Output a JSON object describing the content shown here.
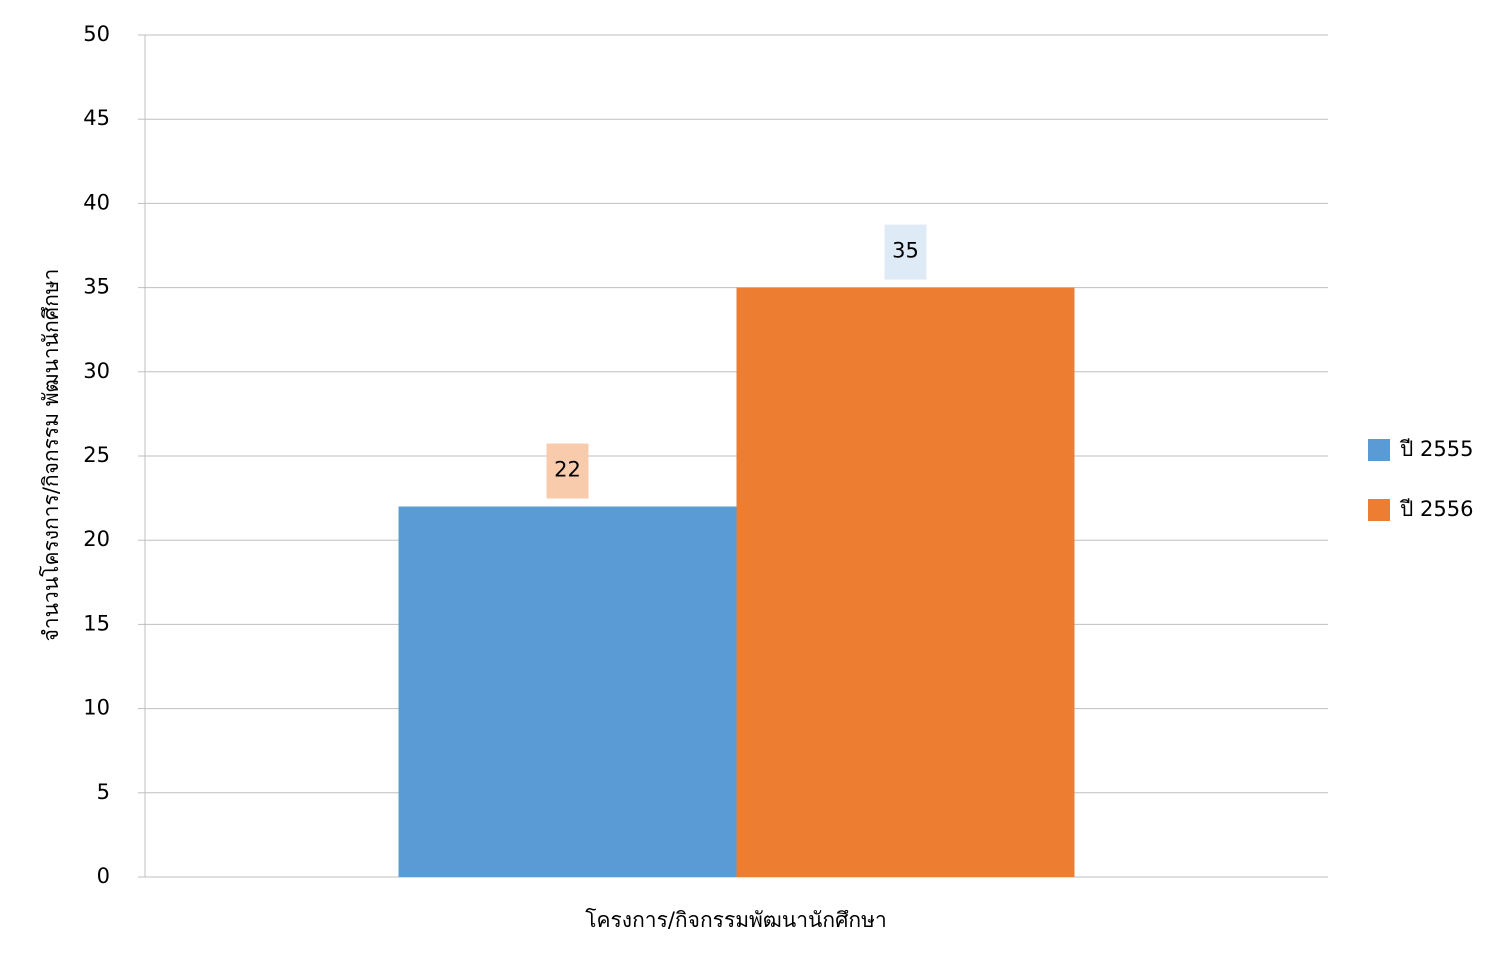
{
  "chart_data": {
    "type": "bar",
    "x_label": "โครงการ/กิจกรรมพัฒนานักศึกษา",
    "y_label": "จำนวนโครงการ/กิจกรรม พัฒนานักศึกษา",
    "categories": [
      null
    ],
    "series": [
      {
        "name": "ปี 2555",
        "color": "#5b9bd5",
        "label_background": "#f8cbad",
        "values": [
          22
        ]
      },
      {
        "name": "ปี 2556",
        "color": "#ed7d31",
        "label_background": "#deebf7",
        "values": [
          35
        ]
      }
    ],
    "ylim": [
      0,
      50
    ],
    "yticks": [
      0,
      5,
      10,
      15,
      20,
      25,
      30,
      35,
      40,
      45,
      50
    ],
    "grid": true,
    "legend": "right"
  }
}
